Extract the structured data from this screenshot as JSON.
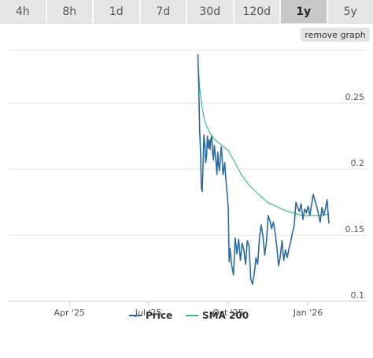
{
  "timeframe_tabs": [
    {
      "label": "4h",
      "active": false
    },
    {
      "label": "8h",
      "active": false
    },
    {
      "label": "1d",
      "active": false
    },
    {
      "label": "7d",
      "active": false
    },
    {
      "label": "30d",
      "active": false
    },
    {
      "label": "120d",
      "active": false
    },
    {
      "label": "1y",
      "active": true
    },
    {
      "label": "5y",
      "active": false
    }
  ],
  "remove_graph_label": "remove graph",
  "chart_data": {
    "type": "line",
    "x_tick_labels": [
      "Apr '25",
      "Jul '25",
      "Oct '25",
      "Jan '26"
    ],
    "x_ticks": [
      "2025-04-01",
      "2025-07-01",
      "2025-10-01",
      "2026-01-01"
    ],
    "x_range": [
      "2025-01-20",
      "2026-02-14"
    ],
    "y_ticks": [
      0.1,
      0.15,
      0.2,
      0.25
    ],
    "y_tick_labels": [
      "0.1",
      "0.15",
      "0.2",
      "0.25"
    ],
    "ylim": [
      0.1,
      0.29
    ],
    "grid": true,
    "legend_position": "bottom",
    "series": [
      {
        "name": "Price",
        "color": "#2b6ca3",
        "points": [
          [
            "2025-08-27",
            0.287
          ],
          [
            "2025-08-28",
            0.262
          ],
          [
            "2025-08-29",
            0.23
          ],
          [
            "2025-08-30",
            0.214
          ],
          [
            "2025-08-31",
            0.186
          ],
          [
            "2025-09-01",
            0.183
          ],
          [
            "2025-09-02",
            0.205
          ],
          [
            "2025-09-03",
            0.226
          ],
          [
            "2025-09-04",
            0.218
          ],
          [
            "2025-09-05",
            0.205
          ],
          [
            "2025-09-06",
            0.21
          ],
          [
            "2025-09-07",
            0.225
          ],
          [
            "2025-09-08",
            0.216
          ],
          [
            "2025-09-09",
            0.222
          ],
          [
            "2025-09-10",
            0.215
          ],
          [
            "2025-09-11",
            0.223
          ],
          [
            "2025-09-12",
            0.225
          ],
          [
            "2025-09-13",
            0.212
          ],
          [
            "2025-09-14",
            0.207
          ],
          [
            "2025-09-15",
            0.218
          ],
          [
            "2025-09-16",
            0.212
          ],
          [
            "2025-09-17",
            0.205
          ],
          [
            "2025-09-18",
            0.196
          ],
          [
            "2025-09-19",
            0.213
          ],
          [
            "2025-09-20",
            0.203
          ],
          [
            "2025-09-21",
            0.199
          ],
          [
            "2025-09-22",
            0.21
          ],
          [
            "2025-09-23",
            0.217
          ],
          [
            "2025-09-24",
            0.208
          ],
          [
            "2025-09-25",
            0.196
          ],
          [
            "2025-09-26",
            0.2
          ],
          [
            "2025-09-27",
            0.205
          ],
          [
            "2025-09-28",
            0.195
          ],
          [
            "2025-09-29",
            0.187
          ],
          [
            "2025-09-30",
            0.18
          ],
          [
            "2025-10-01",
            0.17
          ],
          [
            "2025-10-02",
            0.13
          ],
          [
            "2025-10-03",
            0.14
          ],
          [
            "2025-10-05",
            0.127
          ],
          [
            "2025-10-07",
            0.12
          ],
          [
            "2025-10-09",
            0.148
          ],
          [
            "2025-10-11",
            0.136
          ],
          [
            "2025-10-13",
            0.147
          ],
          [
            "2025-10-15",
            0.131
          ],
          [
            "2025-10-17",
            0.144
          ],
          [
            "2025-10-19",
            0.139
          ],
          [
            "2025-10-21",
            0.128
          ],
          [
            "2025-10-23",
            0.146
          ],
          [
            "2025-10-25",
            0.142
          ],
          [
            "2025-10-27",
            0.117
          ],
          [
            "2025-10-29",
            0.113
          ],
          [
            "2025-10-31",
            0.121
          ],
          [
            "2025-11-02",
            0.133
          ],
          [
            "2025-11-04",
            0.128
          ],
          [
            "2025-11-06",
            0.148
          ],
          [
            "2025-11-08",
            0.158
          ],
          [
            "2025-11-10",
            0.149
          ],
          [
            "2025-11-12",
            0.135
          ],
          [
            "2025-11-14",
            0.145
          ],
          [
            "2025-11-16",
            0.165
          ],
          [
            "2025-11-18",
            0.161
          ],
          [
            "2025-11-20",
            0.155
          ],
          [
            "2025-11-22",
            0.16
          ],
          [
            "2025-11-24",
            0.152
          ],
          [
            "2025-11-26",
            0.141
          ],
          [
            "2025-11-28",
            0.127
          ],
          [
            "2025-11-30",
            0.134
          ],
          [
            "2025-12-02",
            0.146
          ],
          [
            "2025-12-04",
            0.131
          ],
          [
            "2025-12-06",
            0.139
          ],
          [
            "2025-12-08",
            0.133
          ],
          [
            "2025-12-10",
            0.14
          ],
          [
            "2025-12-12",
            0.145
          ],
          [
            "2025-12-14",
            0.152
          ],
          [
            "2025-12-16",
            0.157
          ],
          [
            "2025-12-18",
            0.175
          ],
          [
            "2025-12-20",
            0.171
          ],
          [
            "2025-12-22",
            0.168
          ],
          [
            "2025-12-24",
            0.174
          ],
          [
            "2025-12-26",
            0.162
          ],
          [
            "2025-12-28",
            0.17
          ],
          [
            "2025-12-30",
            0.167
          ],
          [
            "2026-01-01",
            0.172
          ],
          [
            "2026-01-03",
            0.165
          ],
          [
            "2026-01-05",
            0.173
          ],
          [
            "2026-01-07",
            0.181
          ],
          [
            "2026-01-09",
            0.176
          ],
          [
            "2026-01-11",
            0.172
          ],
          [
            "2026-01-13",
            0.166
          ],
          [
            "2026-01-15",
            0.16
          ],
          [
            "2026-01-17",
            0.171
          ],
          [
            "2026-01-19",
            0.165
          ],
          [
            "2026-01-21",
            0.17
          ],
          [
            "2026-01-23",
            0.177
          ],
          [
            "2026-01-25",
            0.159
          ]
        ]
      },
      {
        "name": "SMA 200",
        "color": "#3cc47c",
        "points": [
          [
            "2025-08-27",
            0.284
          ],
          [
            "2025-08-29",
            0.262
          ],
          [
            "2025-09-01",
            0.246
          ],
          [
            "2025-09-04",
            0.236
          ],
          [
            "2025-09-08",
            0.23
          ],
          [
            "2025-09-12",
            0.225
          ],
          [
            "2025-09-18",
            0.221
          ],
          [
            "2025-09-24",
            0.218
          ],
          [
            "2025-10-01",
            0.214
          ],
          [
            "2025-10-08",
            0.206
          ],
          [
            "2025-10-15",
            0.197
          ],
          [
            "2025-10-25",
            0.188
          ],
          [
            "2025-11-05",
            0.181
          ],
          [
            "2025-11-15",
            0.175
          ],
          [
            "2025-11-25",
            0.172
          ],
          [
            "2025-12-05",
            0.169
          ],
          [
            "2025-12-15",
            0.167
          ],
          [
            "2025-12-25",
            0.165
          ],
          [
            "2026-01-05",
            0.165
          ],
          [
            "2026-01-15",
            0.165
          ],
          [
            "2026-01-25",
            0.166
          ]
        ]
      }
    ]
  }
}
